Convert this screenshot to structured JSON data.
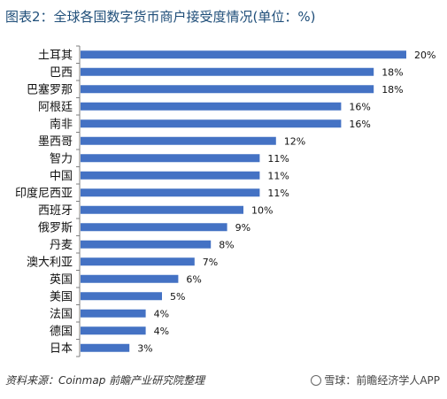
{
  "title": "图表2：全球各国数字货币商户接受度情况(单位：%)",
  "source_note": "资料来源：Coinmap 前瞻产业研究院整理",
  "watermark": "雪球：前瞻经济学人APP",
  "colors": {
    "bar": "#4472c4",
    "axis": "#7f7f7f"
  },
  "chart_data": {
    "type": "bar",
    "orientation": "horizontal",
    "title": "图表2：全球各国数字货币商户接受度情况(单位：%)",
    "xlabel": "",
    "ylabel": "",
    "xlim": [
      0,
      20
    ],
    "grid": false,
    "legend": "none",
    "categories": [
      "土耳其",
      "巴西",
      "巴塞罗那",
      "阿根廷",
      "南非",
      "墨西哥",
      "智力",
      "中国",
      "印度尼西亚",
      "西班牙",
      "俄罗斯",
      "丹麦",
      "澳大利亚",
      "英国",
      "美国",
      "法国",
      "德国",
      "日本"
    ],
    "values": [
      20,
      18,
      18,
      16,
      16,
      12,
      11,
      11,
      11,
      10,
      9,
      8,
      7,
      6,
      5,
      4,
      4,
      3
    ],
    "value_labels": [
      "20%",
      "18%",
      "18%",
      "16%",
      "16%",
      "12%",
      "11%",
      "11%",
      "11%",
      "10%",
      "9%",
      "8%",
      "7%",
      "6%",
      "5%",
      "4%",
      "4%",
      "3%"
    ]
  }
}
